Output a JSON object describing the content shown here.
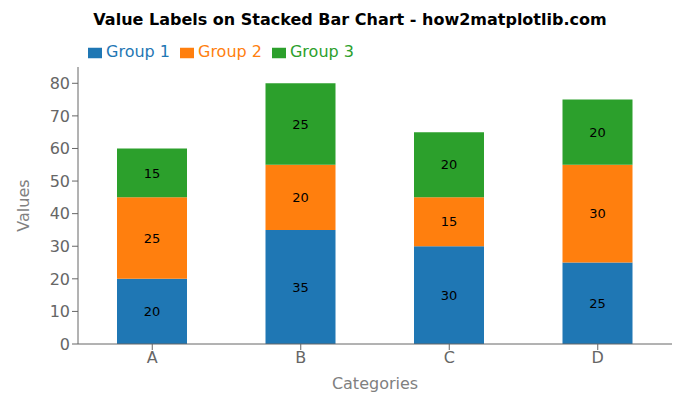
{
  "chart_data": {
    "type": "bar",
    "title": "Value Labels on Stacked Bar Chart - how2matplotlib.com",
    "xlabel": "Categories",
    "ylabel": "Values",
    "categories": [
      "A",
      "B",
      "C",
      "D"
    ],
    "series": [
      {
        "name": "Group 1",
        "color": "#1f77b4",
        "values": [
          20,
          35,
          30,
          25
        ]
      },
      {
        "name": "Group 2",
        "color": "#ff7f0e",
        "values": [
          25,
          20,
          15,
          30
        ]
      },
      {
        "name": "Group 3",
        "color": "#2ca02c",
        "values": [
          15,
          25,
          20,
          20
        ]
      }
    ],
    "stacked": true,
    "data_labels": true,
    "ylim": [
      0,
      85
    ],
    "yticks": [
      0,
      10,
      20,
      30,
      40,
      50,
      60,
      70,
      80
    ],
    "grid": false,
    "legend": "upper left"
  }
}
